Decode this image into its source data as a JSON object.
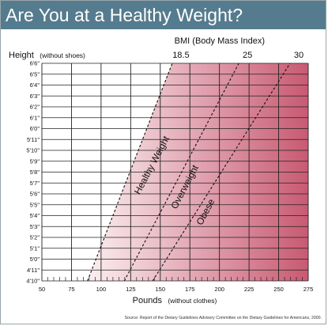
{
  "title": "Are You at a Healthy Weight?",
  "colors": {
    "title_bar": "#557b8e",
    "grid": "#222222",
    "gradient_start": "#fbeff0",
    "gradient_end": "#c85a72"
  },
  "chart_data": {
    "type": "line",
    "title": "Are You at a Healthy Weight?",
    "xlabel": "Pounds",
    "xlabel_note": "(without clothes)",
    "ylabel": "Height",
    "ylabel_note": "(without shoes)",
    "bmi_axis_title": "BMI (Body Mass Index)",
    "xlim": [
      50,
      275
    ],
    "x_ticks": [
      50,
      75,
      100,
      125,
      150,
      175,
      200,
      225,
      250,
      275
    ],
    "x_tick_labels": [
      "50",
      "75",
      "100",
      "125",
      "150",
      "175",
      "200",
      "225",
      "250",
      "275"
    ],
    "x_minor_step": 5,
    "y_labels": [
      "4'10\"",
      "4'11\"",
      "5'0\"",
      "5'1\"",
      "5'2\"",
      "5'3\"",
      "5'4\"",
      "5'5\"",
      "5'6\"",
      "5'7\"",
      "5'8\"",
      "5'9\"",
      "5'10\"",
      "5'11\"",
      "6'0\"",
      "6'1\"",
      "6'2\"",
      "6'3\"",
      "6'4\"",
      "6'5\"",
      "6'6\""
    ],
    "y_inches": [
      58,
      59,
      60,
      61,
      62,
      63,
      64,
      65,
      66,
      67,
      68,
      69,
      70,
      71,
      72,
      73,
      74,
      75,
      76,
      77,
      78
    ],
    "series": [
      {
        "name": "18.5",
        "bmi": 18.5,
        "style": "dashed"
      },
      {
        "name": "25",
        "bmi": 25,
        "style": "dashed"
      },
      {
        "name": "30",
        "bmi": 30,
        "style": "dashed"
      }
    ],
    "zones": [
      {
        "label": "Healthy Weight"
      },
      {
        "label": "Overweight"
      },
      {
        "label": "Obese"
      }
    ],
    "source": "Source: Report of the Dietary Guidelines Advisory Committee on the Dietary Guidelines for Americans, 2000."
  }
}
